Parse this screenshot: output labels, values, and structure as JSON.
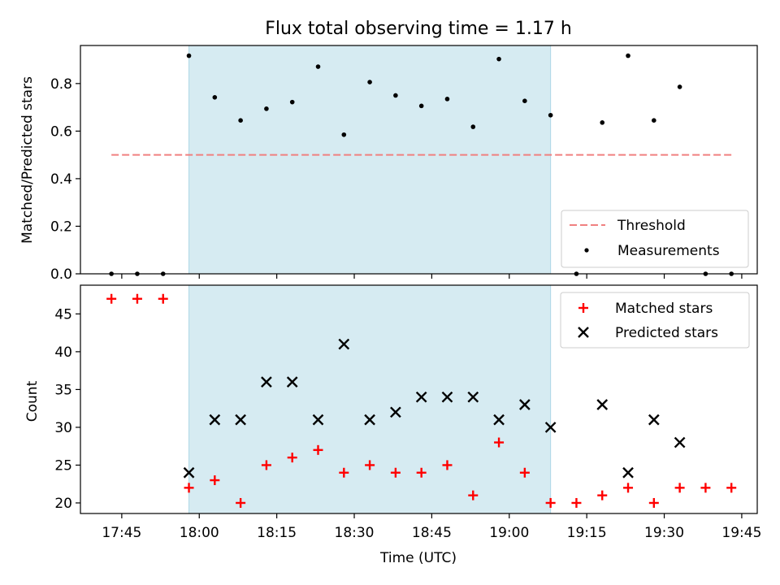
{
  "chart_data": {
    "title": "Flux total observing time = 1.17 h",
    "x_axis": {
      "label": "Time (UTC)",
      "ticks": [
        "17:45",
        "18:00",
        "18:15",
        "18:30",
        "18:45",
        "19:00",
        "19:15",
        "19:30",
        "19:45"
      ],
      "range": [
        "17:37",
        "19:48"
      ]
    },
    "shaded_interval": {
      "start": "17:58",
      "end": "19:08",
      "color": "#add8e6"
    },
    "times": [
      "17:43",
      "17:48",
      "17:53",
      "17:58",
      "18:03",
      "18:08",
      "18:13",
      "18:18",
      "18:23",
      "18:28",
      "18:33",
      "18:38",
      "18:43",
      "18:48",
      "18:53",
      "18:58",
      "19:03",
      "19:08",
      "19:13",
      "19:18",
      "19:23",
      "19:28",
      "19:33",
      "19:38",
      "19:43"
    ],
    "top_panel": {
      "type": "scatter",
      "ylabel": "Matched/Predicted stars",
      "ylim": [
        0,
        0.96
      ],
      "yticks": [
        "0.0",
        "0.2",
        "0.4",
        "0.6",
        "0.8"
      ],
      "threshold": {
        "name": "Threshold",
        "value": 0.5,
        "color": "#f08080"
      },
      "measurements": {
        "name": "Measurements",
        "color": "#000000",
        "values": [
          0,
          0,
          0,
          0.917,
          0.742,
          0.645,
          0.694,
          0.722,
          0.871,
          0.585,
          0.806,
          0.75,
          0.706,
          0.735,
          0.618,
          0.903,
          0.727,
          0.667,
          0,
          0.636,
          0.917,
          0.645,
          0.786,
          0,
          0
        ]
      },
      "legend_position": "lower-right"
    },
    "bottom_panel": {
      "type": "scatter",
      "ylabel": "Count",
      "ylim": [
        18.6,
        48.8
      ],
      "yticks": [
        "20",
        "25",
        "30",
        "35",
        "40",
        "45"
      ],
      "series": [
        {
          "name": "Matched stars",
          "marker": "plus",
          "color": "#ff0000",
          "values": [
            47,
            47,
            47,
            22,
            23,
            20,
            25,
            26,
            27,
            24,
            25,
            24,
            24,
            25,
            21,
            28,
            24,
            20,
            20,
            21,
            22,
            20,
            22,
            22,
            22
          ]
        },
        {
          "name": "Predicted stars",
          "marker": "x",
          "color": "#000000",
          "values": [
            null,
            null,
            null,
            24,
            31,
            31,
            36,
            36,
            31,
            41,
            31,
            32,
            34,
            34,
            34,
            31,
            33,
            30,
            null,
            33,
            24,
            31,
            28,
            null,
            null
          ]
        }
      ],
      "legend_position": "upper-right"
    }
  }
}
